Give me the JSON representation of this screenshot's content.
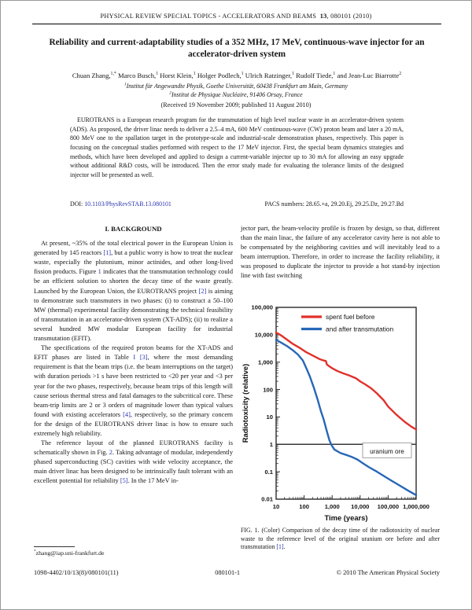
{
  "header": {
    "journal": "PHYSICAL REVIEW SPECIAL TOPICS - ACCELERATORS AND BEAMS",
    "volume": "13",
    "issue_info": ", 080101 (2010)"
  },
  "title": "Reliability and current-adaptability studies of a 352 MHz, 17 MeV, continuous-wave injector for an accelerator-driven system",
  "authors": [
    {
      "t": "Chuan Zhang,",
      "s": "1,*"
    },
    {
      "t": " Marco Busch,",
      "s": "1"
    },
    {
      "t": " Horst Klein,",
      "s": "1"
    },
    {
      "t": " Holger Podlech,",
      "s": "1"
    },
    {
      "t": " Ulrich Ratzinger,",
      "s": "1"
    },
    {
      "t": " Rudolf Tiede,",
      "s": "1"
    },
    {
      "t": " and Jean-Luc Biarrotte",
      "s": "2"
    }
  ],
  "affiliations": [
    {
      "s": "1",
      "t": "Institut für Angewandte Physik, Goethe Universität, 60438 Frankfurt am Main, Germany"
    },
    {
      "s": "2",
      "t": "Institut de Physique Nucléaire, 91406 Orsay, France"
    }
  ],
  "received": "(Received 19 November 2009; published 11 August 2010)",
  "abstract": "EUROTRANS is a European research program for the transmutation of high level nuclear waste in an accelerator-driven system (ADS). As proposed, the driver linac needs to deliver a 2.5–4 mA, 600 MeV continuous-wave (CW) proton beam and later a 20 mA, 800 MeV one to the spallation target in the prototype-scale and industrial-scale demonstration phases, respectively. This paper is focusing on the conceptual studies performed with respect to the 17 MeV injector. First, the special beam dynamics strategies and methods, which have been developed and applied to design a current-variable injector up to 30 mA for allowing an easy upgrade without additional R&D costs, will be introduced. Then the error study made for evaluating the tolerance limits of the designed injector will be presented as well.",
  "doi_label": "DOI: ",
  "doi": "10.1103/PhysRevSTAB.13.080101",
  "pacs": "PACS numbers: 28.65.+a, 29.20.Ej, 29.25.Dz, 29.27.Bd",
  "section": {
    "heading": "I. BACKGROUND",
    "paragraphs": [
      "At present, ~35% of the total electrical power in the European Union is generated by 145 reactors [1], but a public worry is how to treat the nuclear waste, especially the plutonium, minor actinides, and other long-lived fission products. Figure 1 indicates that the transmutation technology could be an efficient solution to shorten the decay time of the waste greatly. Launched by the European Union, the EUROTRANS project [2] is aiming to demonstrate such transmuters in two phases: (i) to construct a 50–100 MW (thermal) experimental facility demonstrating the technical feasibility of transmutation in an accelerator-driven system (XT-ADS); (ii) to realize a several hundred MW modular European facility for industrial transmutation (EFIT).",
      "The specifications of the required proton beams for the XT-ADS and EFIT phases are listed in Table I [3], where the most demanding requirement is that the beam trips (i.e. the beam interruptions on the target) with duration periods >1 s have been restricted to <20 per year and <3 per year for the two phases, respectively, because beam trips of this length will cause serious thermal stress and fatal damages to the subcritical core. These beam-trip limits are 2 or 3 orders of magnitude lower than typical values found with existing accelerators [4], respectively, so the primary concern for the design of the EUROTRANS driver linac is how to ensure such extremely high reliability.",
      "The reference layout of the planned EUROTRANS facility is schematically shown in Fig. 2. Taking advantage of modular, independently phased superconducting (SC) cavities with wide velocity acceptance, the main driver linac has been designed to be intrinsically fault tolerant with an excellent potential for reliability [5]. In the 17 MeV in-"
    ]
  },
  "right_column_paragraph": "jector part, the beam-velocity profile is frozen by design, so that, different than the main linac, the failure of any accelerator cavity here is not able to be compensated by the neighboring cavities and will inevitably lead to a beam interruption. Therefore, in order to increase the facility reliability, it was proposed to duplicate the injector to provide a hot stand-by injection line with fast switching",
  "footnote": {
    "marker": "*",
    "email": "zhang@iap.uni-frankfurt.de"
  },
  "figure_caption": "FIG. 1. (Color) Comparison of the decay time of the radiotoxicity of nuclear waste to the reference level of the original uranium ore before and after transmutation [1].",
  "footer": {
    "left": "1098-4402/10/13(8)/080101(11)",
    "center": "080101-1",
    "right": "© 2010 The American Physical Society"
  },
  "chart_data": {
    "type": "line",
    "title": "",
    "xlabel": "Time (years)",
    "ylabel": "Radiotoxicity (relative)",
    "xscale": "log",
    "yscale": "log",
    "xlim": [
      10,
      1000000
    ],
    "ylim": [
      0.01,
      100000
    ],
    "x_ticks": [
      "10",
      "100",
      "1,000",
      "10,000",
      "100,000",
      "1,000,000"
    ],
    "y_ticks": [
      "0.01",
      "0.1",
      "1",
      "10",
      "100",
      "1,000",
      "10,000",
      "100,000"
    ],
    "grid": false,
    "legend_position": "top-center-inside",
    "frame_color": "#2a2a2a",
    "reference_line": {
      "y": 1,
      "label": "uranium ore",
      "color": "#3a3a3a"
    },
    "series": [
      {
        "name": "spent fuel before",
        "color": "#e0312b",
        "x": [
          10,
          15,
          25,
          40,
          70,
          120,
          200,
          350,
          500,
          600,
          650,
          800,
          1000,
          1500,
          2500,
          4000,
          7000,
          10000,
          15000,
          25000,
          40000,
          70000,
          100000,
          200000,
          400000,
          700000,
          1000000
        ],
        "y": [
          12000,
          9500,
          6500,
          4600,
          3300,
          2300,
          1750,
          1300,
          1150,
          1100,
          820,
          700,
          600,
          480,
          390,
          330,
          260,
          200,
          155,
          110,
          72,
          40,
          24,
          12,
          6.5,
          4.3,
          3.5
        ]
      },
      {
        "name": "and after transmutation",
        "color": "#2767b8",
        "x": [
          10,
          15,
          25,
          40,
          60,
          90,
          120,
          160,
          220,
          300,
          400,
          500,
          650,
          800,
          950,
          1200,
          2000,
          3500,
          5000,
          8000,
          12000,
          20000,
          40000,
          70000,
          120000,
          250000,
          500000,
          1000000
        ],
        "y": [
          6500,
          5200,
          3800,
          2700,
          1900,
          1150,
          600,
          300,
          120,
          45,
          16,
          8,
          3,
          1.4,
          0.95,
          0.65,
          0.48,
          0.4,
          0.35,
          0.28,
          0.21,
          0.15,
          0.1,
          0.07,
          0.05,
          0.032,
          0.021,
          0.014
        ]
      }
    ]
  }
}
